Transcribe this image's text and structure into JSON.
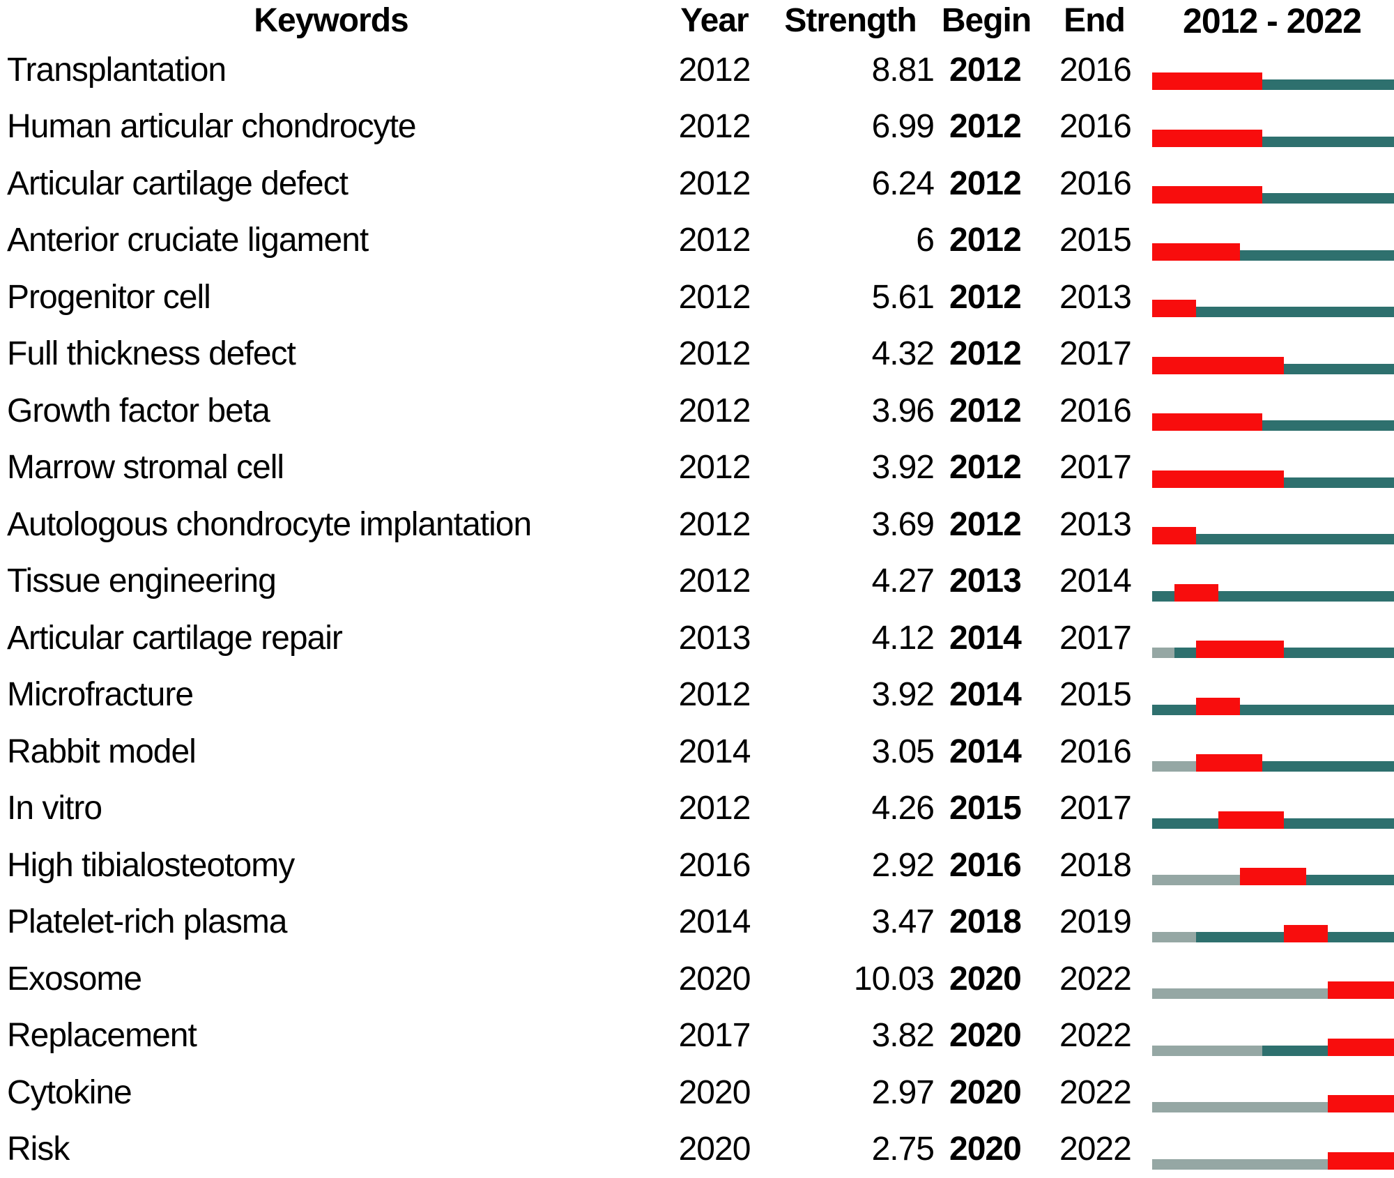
{
  "header": {
    "keywords": "Keywords",
    "year": "Year",
    "strength": "Strength",
    "begin": "Begin",
    "end": "End",
    "timeline": "2012 - 2022"
  },
  "colors": {
    "burst_red": "#F80D0D",
    "active_teal": "#2E706E",
    "inactive_gray": "#95A7A4"
  },
  "timeline": {
    "start_year": 2012,
    "end_year": 2022
  },
  "chart_data": {
    "type": "table",
    "columns": [
      "Keywords",
      "Year",
      "Strength",
      "Begin",
      "End",
      "2012 - 2022"
    ],
    "timeline_axis": {
      "start": 2012,
      "end": 2022
    },
    "legend_semantics": {
      "red_segment": "burst period (Begin to End)",
      "teal_segment": "keyword active (from first appearance Year)",
      "gray_segment": "before first appearance"
    },
    "rows": [
      {
        "keyword": "Transplantation",
        "year": 2012,
        "strength": "8.81",
        "begin": 2012,
        "end": 2016
      },
      {
        "keyword": "Human articular chondrocyte",
        "year": 2012,
        "strength": "6.99",
        "begin": 2012,
        "end": 2016
      },
      {
        "keyword": "Articular cartilage defect",
        "year": 2012,
        "strength": "6.24",
        "begin": 2012,
        "end": 2016
      },
      {
        "keyword": "Anterior cruciate ligament",
        "year": 2012,
        "strength": "6",
        "begin": 2012,
        "end": 2015
      },
      {
        "keyword": "Progenitor cell",
        "year": 2012,
        "strength": "5.61",
        "begin": 2012,
        "end": 2013
      },
      {
        "keyword": "Full thickness defect",
        "year": 2012,
        "strength": "4.32",
        "begin": 2012,
        "end": 2017
      },
      {
        "keyword": "Growth factor beta",
        "year": 2012,
        "strength": "3.96",
        "begin": 2012,
        "end": 2016
      },
      {
        "keyword": "Marrow stromal cell",
        "year": 2012,
        "strength": "3.92",
        "begin": 2012,
        "end": 2017
      },
      {
        "keyword": "Autologous chondrocyte implantation",
        "year": 2012,
        "strength": "3.69",
        "begin": 2012,
        "end": 2013
      },
      {
        "keyword": "Tissue engineering",
        "year": 2012,
        "strength": "4.27",
        "begin": 2013,
        "end": 2014
      },
      {
        "keyword": "Articular cartilage repair",
        "year": 2013,
        "strength": "4.12",
        "begin": 2014,
        "end": 2017
      },
      {
        "keyword": "Microfracture",
        "year": 2012,
        "strength": "3.92",
        "begin": 2014,
        "end": 2015
      },
      {
        "keyword": "Rabbit model",
        "year": 2014,
        "strength": "3.05",
        "begin": 2014,
        "end": 2016
      },
      {
        "keyword": "In vitro",
        "year": 2012,
        "strength": "4.26",
        "begin": 2015,
        "end": 2017
      },
      {
        "keyword": "High tibialosteotomy",
        "year": 2016,
        "strength": "2.92",
        "begin": 2016,
        "end": 2018
      },
      {
        "keyword": "Platelet-rich plasma",
        "year": 2014,
        "strength": "3.47",
        "begin": 2018,
        "end": 2019
      },
      {
        "keyword": "Exosome",
        "year": 2020,
        "strength": "10.03",
        "begin": 2020,
        "end": 2022
      },
      {
        "keyword": "Replacement",
        "year": 2017,
        "strength": "3.82",
        "begin": 2020,
        "end": 2022
      },
      {
        "keyword": "Cytokine",
        "year": 2020,
        "strength": "2.97",
        "begin": 2020,
        "end": 2022
      },
      {
        "keyword": "Risk",
        "year": 2020,
        "strength": "2.75",
        "begin": 2020,
        "end": 2022
      }
    ]
  }
}
